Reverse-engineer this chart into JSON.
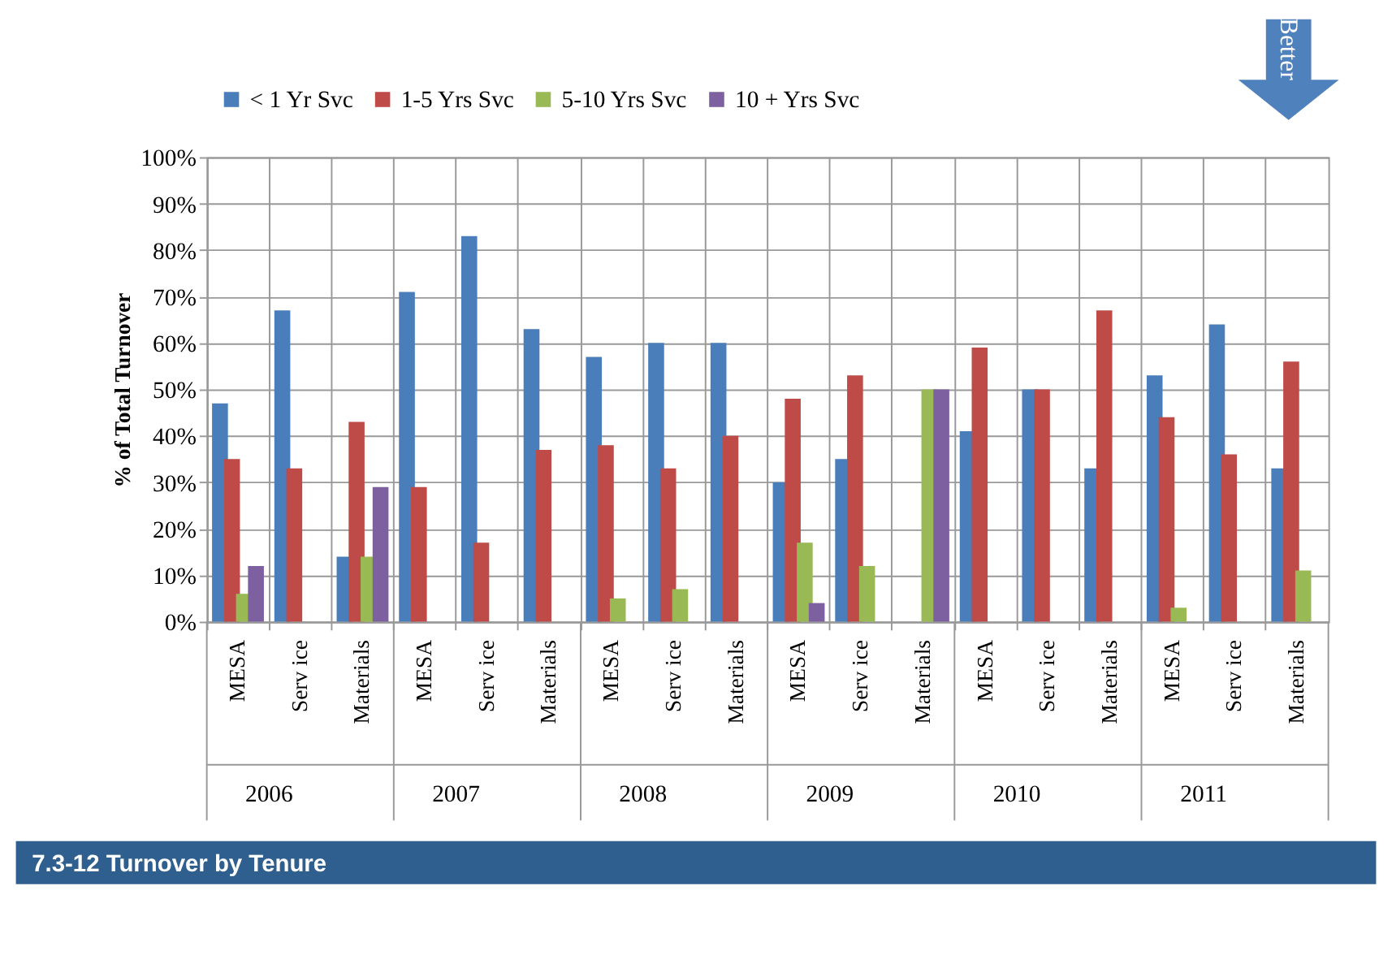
{
  "chart_data": {
    "type": "bar",
    "title": "7.3-12  Turnover by Tenure",
    "ylabel": "% of Total Turnover",
    "categories": [
      "MESA",
      "Serv ice",
      "Materials",
      "MESA",
      "Serv ice",
      "Materials",
      "MESA",
      "Serv ice",
      "Materials",
      "MESA",
      "Serv ice",
      "Materials",
      "MESA",
      "Serv ice",
      "Materials",
      "MESA",
      "Serv ice",
      "Materials"
    ],
    "series": [
      {
        "name": "< 1 Yr Svc",
        "color": "#4a7ebb",
        "values": [
          47,
          67,
          14,
          71,
          83,
          63,
          57,
          60,
          60,
          30,
          35,
          null,
          41,
          50,
          33,
          53,
          64,
          33
        ]
      },
      {
        "name": "1-5 Yrs Svc",
        "color": "#be4b48",
        "values": [
          35,
          33,
          43,
          29,
          17,
          37,
          38,
          33,
          40,
          48,
          53,
          null,
          59,
          50,
          67,
          44,
          36,
          56
        ]
      },
      {
        "name": "5-10 Yrs Svc",
        "color": "#98b954",
        "values": [
          6,
          null,
          14,
          null,
          null,
          null,
          5,
          7,
          null,
          17,
          12,
          50,
          null,
          null,
          null,
          3,
          null,
          11
        ]
      },
      {
        "name": "10 + Yrs Svc",
        "color": "#7d60a0",
        "values": [
          12,
          null,
          29,
          null,
          null,
          null,
          null,
          null,
          null,
          4,
          null,
          50,
          null,
          null,
          null,
          null,
          null,
          null
        ]
      }
    ],
    "ylim": [
      0,
      100
    ],
    "yticks": [
      {
        "value": 0,
        "label": "0%"
      },
      {
        "value": 10,
        "label": "10%"
      },
      {
        "value": 20,
        "label": "20%"
      },
      {
        "value": 30,
        "label": "30%"
      },
      {
        "value": 40,
        "label": "40%"
      },
      {
        "value": 50,
        "label": "50%"
      },
      {
        "value": 60,
        "label": "60%"
      },
      {
        "value": 70,
        "label": "70%"
      },
      {
        "value": 80,
        "label": "80%"
      },
      {
        "value": 90,
        "label": "90%"
      },
      {
        "value": 100,
        "label": "100%"
      }
    ],
    "annotations": [
      "2006",
      "2007",
      "2008",
      "2009",
      "2010",
      "2011",
      "Better"
    ],
    "grid": true,
    "legend": "top"
  }
}
